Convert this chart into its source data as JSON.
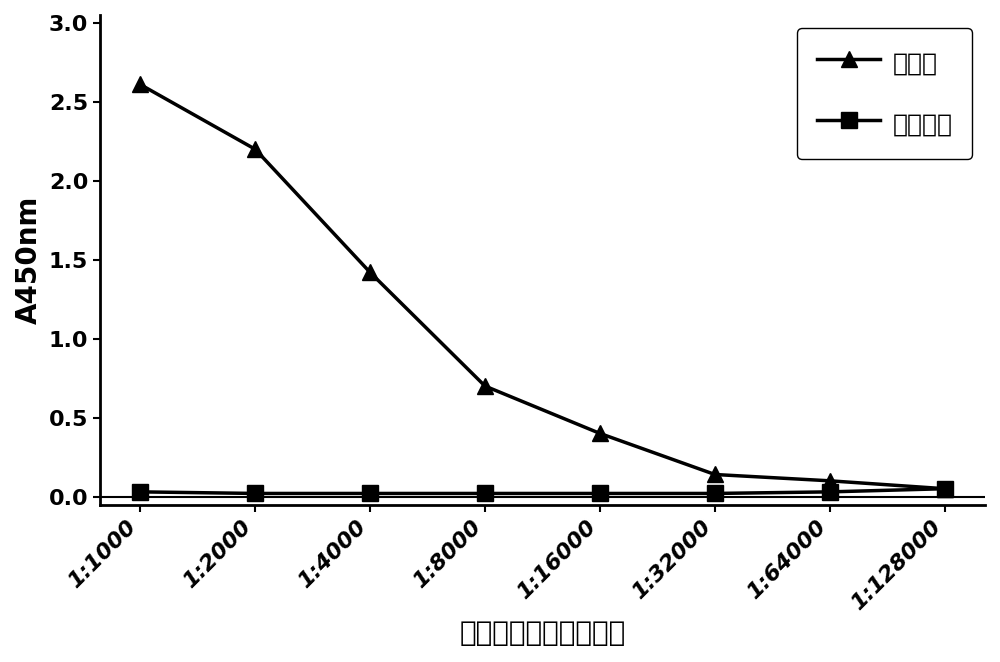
{
  "x_labels": [
    "1:1000",
    "1:2000",
    "1:4000",
    "1:8000",
    "1:16000",
    "1:32000",
    "1:64000",
    "1:128000"
  ],
  "x_values": [
    1,
    2,
    3,
    4,
    5,
    6,
    7,
    8
  ],
  "antiserum_y": [
    2.61,
    2.2,
    1.42,
    0.7,
    0.4,
    0.14,
    0.1,
    0.05
  ],
  "blank_serum_y": [
    0.03,
    0.02,
    0.02,
    0.02,
    0.02,
    0.02,
    0.03,
    0.05
  ],
  "line_color": "#000000",
  "marker_triangle": "^",
  "marker_square": "s",
  "markersize": 11,
  "linewidth": 2.5,
  "ylabel": "A450nm",
  "xlabel": "抗体效价（稀释倍数）",
  "legend_antiserum": "抗血清",
  "legend_blank": "空白血清",
  "ylim": [
    -0.05,
    3.05
  ],
  "yticks": [
    0,
    0.5,
    1.0,
    1.5,
    2.0,
    2.5,
    3.0
  ],
  "legend_fontsize": 18,
  "ylabel_fontsize": 20,
  "xlabel_fontsize": 20,
  "tick_fontsize": 16,
  "background_color": "#ffffff"
}
